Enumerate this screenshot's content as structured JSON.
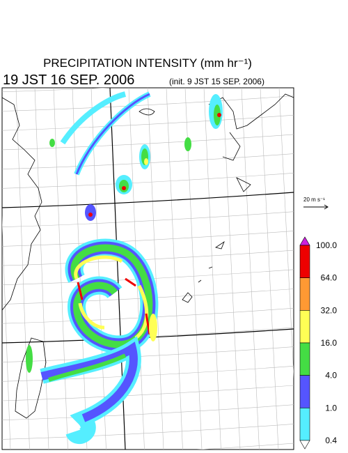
{
  "header": {
    "title": "PRECIPITATION INTENSITY (mm hr⁻¹)",
    "valid_time": "19 JST 16 SEP. 2006",
    "init_time": "(init. 9 JST 15 SEP. 2006)"
  },
  "vector_key": {
    "label": "20 m s⁻¹"
  },
  "colorbar": {
    "labels": [
      "100.0",
      "64.0",
      "32.0",
      "16.0",
      "4.0",
      "1.0",
      "0.4"
    ],
    "colors": [
      "#cc22dd",
      "#ee0000",
      "#ff9933",
      "#ffff55",
      "#44dd44",
      "#5555ff",
      "#55eeff",
      "#ffffff"
    ]
  }
}
